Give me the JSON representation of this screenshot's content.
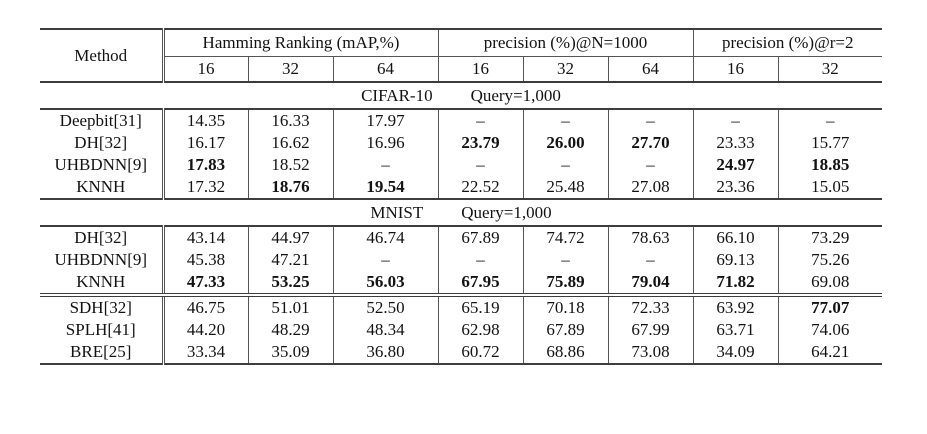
{
  "table": {
    "method_header": "Method",
    "groups": [
      {
        "label": "Hamming Ranking (mAP,%)",
        "span": 3
      },
      {
        "label": "precision (%)@N=1000",
        "span": 3
      },
      {
        "label": "precision (%)@r=2",
        "span": 2
      }
    ],
    "bit_columns": [
      "16",
      "32",
      "64",
      "16",
      "32",
      "64",
      "16",
      "32"
    ],
    "colors": {
      "rule": "#3d3d3d",
      "grid": "#555555",
      "text": "#121212",
      "background": "#ffffff"
    },
    "sections": [
      {
        "dataset": "CIFAR-10",
        "query": "Query=1,000",
        "rows": [
          {
            "method": "Deepbit[31]",
            "cells": [
              {
                "v": "14.35",
                "b": false
              },
              {
                "v": "16.33",
                "b": false
              },
              {
                "v": "17.97",
                "b": false
              },
              {
                "v": "–",
                "b": false
              },
              {
                "v": "–",
                "b": false
              },
              {
                "v": "–",
                "b": false
              },
              {
                "v": "–",
                "b": false
              },
              {
                "v": "–",
                "b": false
              }
            ]
          },
          {
            "method": "DH[32]",
            "cells": [
              {
                "v": "16.17",
                "b": false
              },
              {
                "v": "16.62",
                "b": false
              },
              {
                "v": "16.96",
                "b": false
              },
              {
                "v": "23.79",
                "b": true
              },
              {
                "v": "26.00",
                "b": true
              },
              {
                "v": "27.70",
                "b": true
              },
              {
                "v": "23.33",
                "b": false
              },
              {
                "v": "15.77",
                "b": false
              }
            ]
          },
          {
            "method": "UHBDNN[9]",
            "cells": [
              {
                "v": "17.83",
                "b": true
              },
              {
                "v": "18.52",
                "b": false
              },
              {
                "v": "–",
                "b": false
              },
              {
                "v": "–",
                "b": false
              },
              {
                "v": "–",
                "b": false
              },
              {
                "v": "–",
                "b": false
              },
              {
                "v": "24.97",
                "b": true
              },
              {
                "v": "18.85",
                "b": true
              }
            ]
          },
          {
            "method": "KNNH",
            "cells": [
              {
                "v": "17.32",
                "b": false
              },
              {
                "v": "18.76",
                "b": true
              },
              {
                "v": "19.54",
                "b": true
              },
              {
                "v": "22.52",
                "b": false
              },
              {
                "v": "25.48",
                "b": false
              },
              {
                "v": "27.08",
                "b": false
              },
              {
                "v": "23.36",
                "b": false
              },
              {
                "v": "15.05",
                "b": false
              }
            ]
          }
        ]
      },
      {
        "dataset": "MNIST",
        "query": "Query=1,000",
        "rows": [
          {
            "method": "DH[32]",
            "cells": [
              {
                "v": "43.14",
                "b": false
              },
              {
                "v": "44.97",
                "b": false
              },
              {
                "v": "46.74",
                "b": false
              },
              {
                "v": "67.89",
                "b": false
              },
              {
                "v": "74.72",
                "b": false
              },
              {
                "v": "78.63",
                "b": false
              },
              {
                "v": "66.10",
                "b": false
              },
              {
                "v": "73.29",
                "b": false
              }
            ]
          },
          {
            "method": "UHBDNN[9]",
            "cells": [
              {
                "v": "45.38",
                "b": false
              },
              {
                "v": "47.21",
                "b": false
              },
              {
                "v": "–",
                "b": false
              },
              {
                "v": "–",
                "b": false
              },
              {
                "v": "–",
                "b": false
              },
              {
                "v": "–",
                "b": false
              },
              {
                "v": "69.13",
                "b": false
              },
              {
                "v": "75.26",
                "b": false
              }
            ]
          },
          {
            "method": "KNNH",
            "cells": [
              {
                "v": "47.33",
                "b": true
              },
              {
                "v": "53.25",
                "b": true
              },
              {
                "v": "56.03",
                "b": true
              },
              {
                "v": "67.95",
                "b": true
              },
              {
                "v": "75.89",
                "b": true
              },
              {
                "v": "79.04",
                "b": true
              },
              {
                "v": "71.82",
                "b": true
              },
              {
                "v": "69.08",
                "b": false
              }
            ]
          }
        ]
      },
      {
        "dataset": null,
        "query": null,
        "rows": [
          {
            "method": "SDH[32]",
            "cells": [
              {
                "v": "46.75",
                "b": false
              },
              {
                "v": "51.01",
                "b": false
              },
              {
                "v": "52.50",
                "b": false
              },
              {
                "v": "65.19",
                "b": false
              },
              {
                "v": "70.18",
                "b": false
              },
              {
                "v": "72.33",
                "b": false
              },
              {
                "v": "63.92",
                "b": false
              },
              {
                "v": "77.07",
                "b": true
              }
            ]
          },
          {
            "method": "SPLH[41]",
            "cells": [
              {
                "v": "44.20",
                "b": false
              },
              {
                "v": "48.29",
                "b": false
              },
              {
                "v": "48.34",
                "b": false
              },
              {
                "v": "62.98",
                "b": false
              },
              {
                "v": "67.89",
                "b": false
              },
              {
                "v": "67.99",
                "b": false
              },
              {
                "v": "63.71",
                "b": false
              },
              {
                "v": "74.06",
                "b": false
              }
            ]
          },
          {
            "method": "BRE[25]",
            "cells": [
              {
                "v": "33.34",
                "b": false
              },
              {
                "v": "35.09",
                "b": false
              },
              {
                "v": "36.80",
                "b": false
              },
              {
                "v": "60.72",
                "b": false
              },
              {
                "v": "68.86",
                "b": false
              },
              {
                "v": "73.08",
                "b": false
              },
              {
                "v": "34.09",
                "b": false
              },
              {
                "v": "64.21",
                "b": false
              }
            ]
          }
        ]
      }
    ]
  }
}
